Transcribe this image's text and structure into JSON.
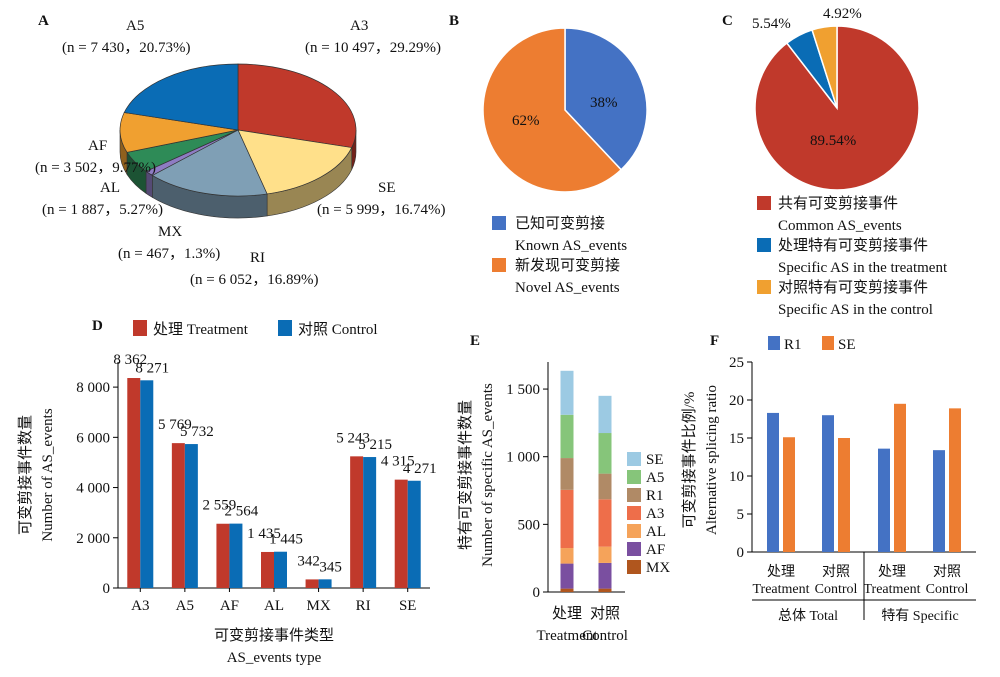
{
  "colors": {
    "red": "#c0392b",
    "blue": "#0a6cb5",
    "blueB": "#4472c4",
    "orange": "#ed7d31",
    "gold": "#f0a030",
    "tan": "#b08a66",
    "green": "#86c57a",
    "lightblue": "#9ccae3",
    "purple": "#7a4fa0",
    "sienna": "#b0561e",
    "salmon": "#ee6e4a",
    "peach": "#f5a35a",
    "paleyellow": "#ffe08a",
    "slate": "#7f9fb5",
    "darkgreen": "#2e8b57",
    "lavender": "#8e7cc3"
  },
  "chart_data": [
    {
      "panel": "A",
      "type": "pie",
      "slices": [
        {
          "name": "A3",
          "n": "n = 10 497",
          "pct": 29.29,
          "pct_label": "29.29%"
        },
        {
          "name": "SE",
          "n": "n = 5 999",
          "pct": 16.74,
          "pct_label": "16.74%"
        },
        {
          "name": "RI",
          "n": "n = 6 052",
          "pct": 16.89,
          "pct_label": "16.89%"
        },
        {
          "name": "MX",
          "n": "n = 467",
          "pct": 1.3,
          "pct_label": "1.3%"
        },
        {
          "name": "AL",
          "n": "n = 1 887",
          "pct": 5.27,
          "pct_label": "5.27%"
        },
        {
          "name": "AF",
          "n": "n = 3 502",
          "pct": 9.77,
          "pct_label": "9.77%"
        },
        {
          "name": "A5",
          "n": "n = 7 430",
          "pct": 20.73,
          "pct_label": "20.73%"
        }
      ]
    },
    {
      "panel": "B",
      "type": "pie",
      "slices": [
        {
          "pct": 38,
          "label": "38%",
          "legend_cn": "已知可变剪接",
          "legend_en": "Known AS_events"
        },
        {
          "pct": 62,
          "label": "62%",
          "legend_cn": "新发现可变剪接",
          "legend_en": "Novel AS_events"
        }
      ]
    },
    {
      "panel": "C",
      "type": "pie",
      "slices": [
        {
          "pct": 89.54,
          "label": "89.54%",
          "legend_cn": "共有可变剪接事件",
          "legend_en": "Common AS_events"
        },
        {
          "pct": 5.54,
          "label": "5.54%",
          "legend_cn": "处理特有可变剪接事件",
          "legend_en": "Specific AS in the treatment"
        },
        {
          "pct": 4.92,
          "label": "4.92%",
          "legend_cn": "对照特有可变剪接事件",
          "legend_en": "Specific AS in the control"
        }
      ]
    },
    {
      "panel": "D",
      "type": "bar",
      "categories": [
        "A3",
        "A5",
        "AF",
        "AL",
        "MX",
        "RI",
        "SE"
      ],
      "series": [
        {
          "name": "处理 Treatment",
          "values": [
            8362,
            5769,
            2559,
            1435,
            342,
            5243,
            4315
          ],
          "labels": [
            "8 362",
            "5 769",
            "2 559",
            "1 435",
            "342",
            "5 243",
            "4 315"
          ]
        },
        {
          "name": "对照 Control",
          "values": [
            8271,
            5732,
            2564,
            1445,
            345,
            5215,
            4271
          ],
          "labels": [
            "8 271",
            "5 732",
            "2 564",
            "1 445",
            "345",
            "5 215",
            "4 271"
          ]
        }
      ],
      "ylim": [
        0,
        9000
      ],
      "yticks": [
        0,
        2000,
        4000,
        6000,
        8000
      ],
      "ytick_labels": [
        "0",
        "2 000",
        "4 000",
        "6 000",
        "8 000"
      ],
      "ylabel_cn": "可变剪接事件数量",
      "ylabel_en": "Number of AS_events",
      "xlabel_cn": "可变剪接事件类型",
      "xlabel_en": "AS_events type"
    },
    {
      "panel": "E",
      "type": "bar",
      "stacked": true,
      "categories_cn": [
        "处理",
        "对照"
      ],
      "categories_en": [
        "Treatment",
        "Control"
      ],
      "stack_order_bottom_to_top": [
        "MX",
        "AF",
        "AL",
        "A3",
        "R1",
        "A5",
        "SE"
      ],
      "series": [
        {
          "name": "MX",
          "values": [
            25,
            25
          ]
        },
        {
          "name": "AF",
          "values": [
            185,
            190
          ]
        },
        {
          "name": "AL",
          "values": [
            115,
            120
          ]
        },
        {
          "name": "A3",
          "values": [
            430,
            350
          ]
        },
        {
          "name": "R1",
          "values": [
            235,
            190
          ]
        },
        {
          "name": "A5",
          "values": [
            320,
            300
          ]
        },
        {
          "name": "SE",
          "values": [
            325,
            275
          ]
        }
      ],
      "legend_order": [
        "SE",
        "A5",
        "R1",
        "A3",
        "AL",
        "AF",
        "MX"
      ],
      "ylim": [
        0,
        1700
      ],
      "yticks": [
        0,
        500,
        1000,
        1500
      ],
      "ytick_labels": [
        "0",
        "500",
        "1 000",
        "1 500"
      ],
      "ylabel_cn": "特有可变剪接事件数量",
      "ylabel_en": "Number of specific AS_events"
    },
    {
      "panel": "F",
      "type": "bar",
      "series": [
        {
          "name": "R1",
          "values": [
            18.3,
            18.0,
            13.6,
            13.4
          ]
        },
        {
          "name": "SE",
          "values": [
            15.1,
            15.0,
            19.5,
            18.9
          ]
        }
      ],
      "categories_cn": [
        "处理",
        "对照",
        "处理",
        "对照"
      ],
      "categories_en": [
        "Treatment",
        "Control",
        "Treatment",
        "Control"
      ],
      "groups": [
        "总体 Total",
        "特有 Specific"
      ],
      "ylim": [
        0,
        25
      ],
      "yticks": [
        0,
        5,
        10,
        15,
        20,
        25
      ],
      "ytick_labels": [
        "0",
        "5",
        "10",
        "15",
        "20",
        "25"
      ],
      "ylabel_cn": "可变剪接事件比例/%",
      "ylabel_en": "Alternative splicing ratio"
    }
  ],
  "panels": {
    "A": "A",
    "B": "B",
    "C": "C",
    "D": "D",
    "E": "E",
    "F": "F"
  }
}
